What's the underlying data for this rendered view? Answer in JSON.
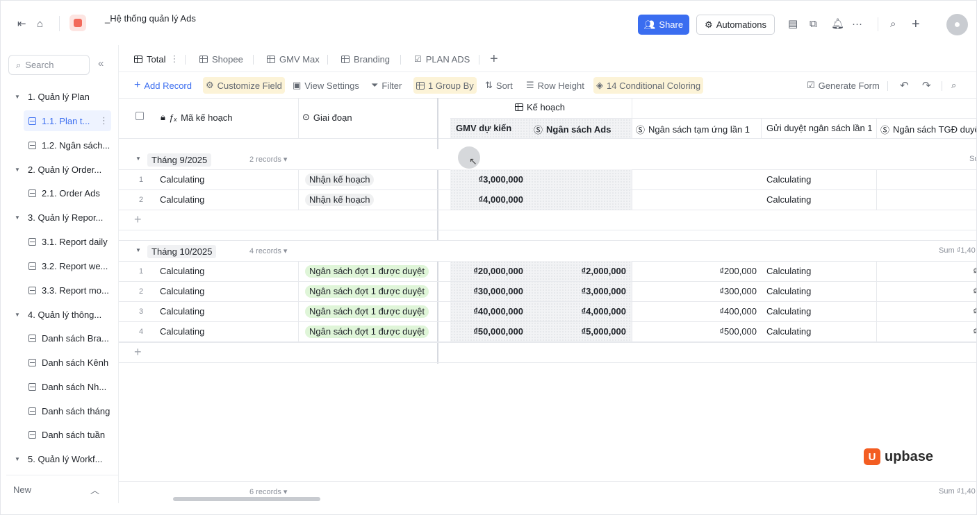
{
  "topbar": {
    "title": "_Hệ thống quản lý Ads",
    "share_label": "Share",
    "automations_label": "Automations"
  },
  "sidebar": {
    "search_placeholder": "Search",
    "items": [
      {
        "label": "1. Quản lý Plan",
        "type": "folder"
      },
      {
        "label": "1.1. Plan t...",
        "type": "table",
        "active": true
      },
      {
        "label": "1.2. Ngân sách...",
        "type": "table"
      },
      {
        "label": "2. Quản lý Order...",
        "type": "folder"
      },
      {
        "label": "2.1. Order Ads",
        "type": "table"
      },
      {
        "label": "3. Quản lý Repor...",
        "type": "folder"
      },
      {
        "label": "3.1. Report daily",
        "type": "table"
      },
      {
        "label": "3.2. Report we...",
        "type": "table"
      },
      {
        "label": "3.3. Report mo...",
        "type": "table"
      },
      {
        "label": "4. Quản lý thông...",
        "type": "folder"
      },
      {
        "label": "Danh sách Bra...",
        "type": "table"
      },
      {
        "label": "Danh sách Kênh",
        "type": "table"
      },
      {
        "label": "Danh sách Nh...",
        "type": "table"
      },
      {
        "label": "Danh sách tháng",
        "type": "table"
      },
      {
        "label": "Danh sách tuần",
        "type": "table"
      },
      {
        "label": "5. Quản lý Workf...",
        "type": "folder"
      }
    ],
    "new_label": "New"
  },
  "tabs": [
    "Total",
    "Shopee",
    "GMV Max",
    "Branding",
    "PLAN ADS"
  ],
  "toolbar": {
    "add_record": "Add Record",
    "customize_field": "Customize Field",
    "view_settings": "View Settings",
    "filter": "Filter",
    "group_by": "1 Group By",
    "sort": "Sort",
    "row_height": "Row Height",
    "conditional": "14 Conditional Coloring",
    "generate_form": "Generate Form"
  },
  "table": {
    "col_ma": "Mã kế hoạch",
    "col_giai_doan": "Giai đoạn",
    "col_group": "Kế hoạch",
    "col_gmv": "GMV dự kiến",
    "col_ngansach_ads": "Ngân sách Ads",
    "col_tamung": "Ngân sách tạm ứng lần 1",
    "col_guiduyet": "Gửi duyệt ngân sách lần 1",
    "col_tgd": "Ngân sách TGĐ duyệt",
    "groups": [
      {
        "label": "Tháng 9/2025",
        "count": "2 records",
        "sum": "Su",
        "rows": [
          {
            "n": "1",
            "ma": "Calculating",
            "giai_doan": "Nhận kế hoạch",
            "gmv": "₫3,000,000",
            "ads": "",
            "tamung": "",
            "guiduyet": "Calculating",
            "tgd": ""
          },
          {
            "n": "2",
            "ma": "Calculating",
            "giai_doan": "Nhận kế hoạch",
            "gmv": "₫4,000,000",
            "ads": "",
            "tamung": "",
            "guiduyet": "Calculating",
            "tgd": ""
          }
        ]
      },
      {
        "label": "Tháng 10/2025",
        "count": "4 records",
        "sum": "Sum ₫1,40",
        "rows": [
          {
            "n": "1",
            "ma": "Calculating",
            "giai_doan": "Ngân sách đợt 1 được duyệt",
            "gmv": "₫20,000,000",
            "ads": "₫2,000,000",
            "tamung": "₫200,000",
            "guiduyet": "Calculating",
            "tgd": "₫"
          },
          {
            "n": "2",
            "ma": "Calculating",
            "giai_doan": "Ngân sách đợt 1 được duyệt",
            "gmv": "₫30,000,000",
            "ads": "₫3,000,000",
            "tamung": "₫300,000",
            "guiduyet": "Calculating",
            "tgd": "₫"
          },
          {
            "n": "3",
            "ma": "Calculating",
            "giai_doan": "Ngân sách đợt 1 được duyệt",
            "gmv": "₫40,000,000",
            "ads": "₫4,000,000",
            "tamung": "₫400,000",
            "guiduyet": "Calculating",
            "tgd": "₫"
          },
          {
            "n": "4",
            "ma": "Calculating",
            "giai_doan": "Ngân sách đợt 1 được duyệt",
            "gmv": "₫50,000,000",
            "ads": "₫5,000,000",
            "tamung": "₫500,000",
            "guiduyet": "Calculating",
            "tgd": "₫"
          }
        ]
      }
    ],
    "footer_count": "6 records",
    "footer_sum": "Sum ₫1,40"
  },
  "brand": "upbase"
}
